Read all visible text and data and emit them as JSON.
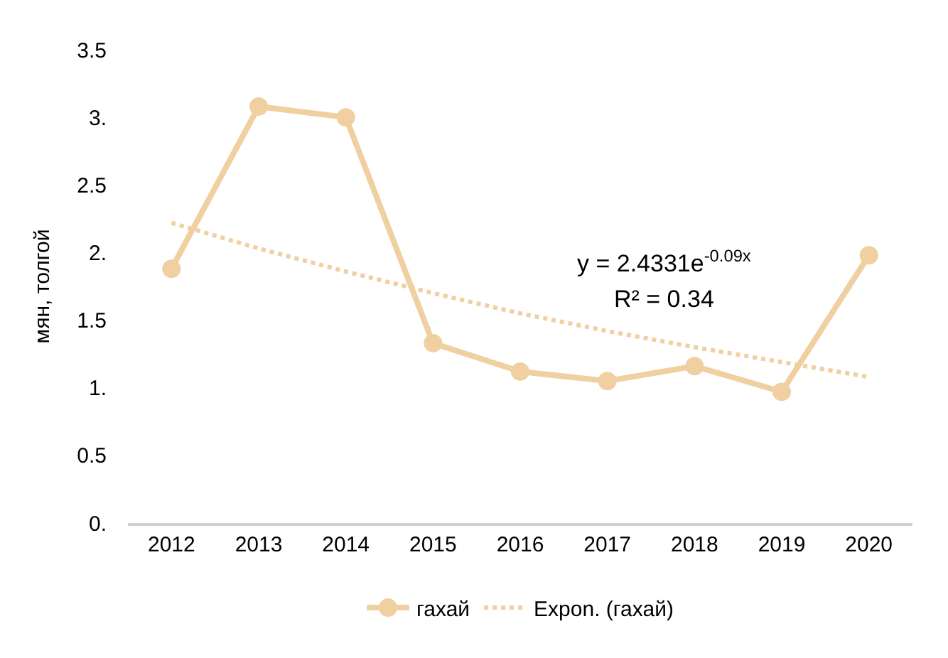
{
  "chart_data": {
    "type": "line",
    "ylabel": "мян, толгой",
    "categories": [
      "2012",
      "2013",
      "2014",
      "2015",
      "2016",
      "2017",
      "2018",
      "2019",
      "2020"
    ],
    "series": [
      {
        "name": "гахай",
        "color": "#f0cfa0",
        "values": [
          1.88,
          3.08,
          3.0,
          1.33,
          1.12,
          1.05,
          1.16,
          0.97,
          1.98
        ],
        "marker": "circle",
        "line_style": "solid"
      },
      {
        "name": "Expon. (гахай)",
        "color": "#f0cfa0",
        "values": [
          2.22,
          2.03,
          1.86,
          1.7,
          1.55,
          1.42,
          1.3,
          1.19,
          1.08
        ],
        "marker": "none",
        "line_style": "dotted"
      }
    ],
    "ylim": [
      0,
      3.5
    ],
    "yticks": [
      {
        "value": 0,
        "label": "0."
      },
      0.5,
      {
        "value": 1,
        "label": "1."
      },
      1.5,
      {
        "value": 2,
        "label": "2."
      },
      2.5,
      {
        "value": 3,
        "label": "3."
      },
      3.5
    ],
    "annotations": [
      "y = 2.4331e$^{-0.09x}$",
      "R² = 0.34"
    ],
    "legend": "bottom"
  }
}
